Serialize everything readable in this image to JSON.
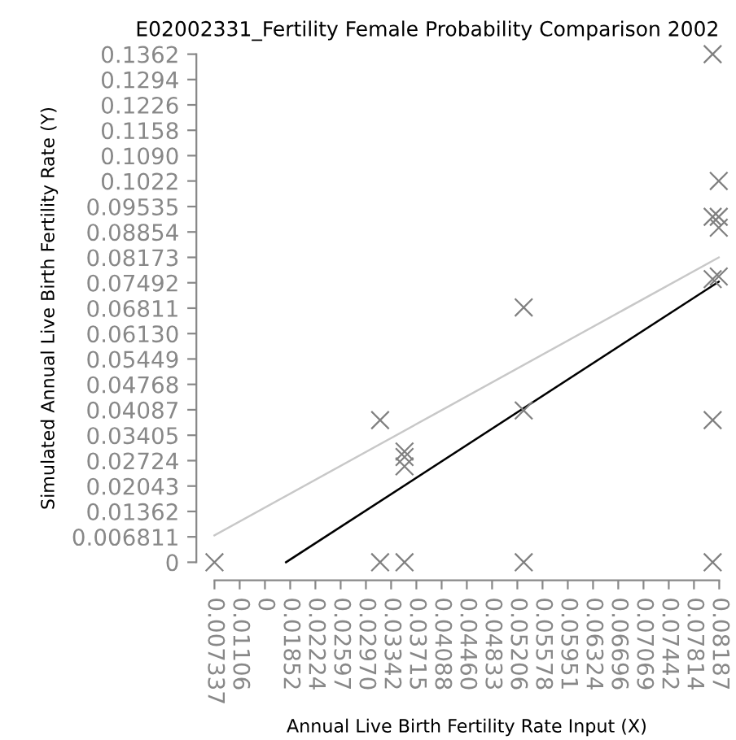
{
  "chart_data": {
    "type": "scatter",
    "title": "E02002331_Fertility Female Probability Comparison 2002",
    "xlabel": "Annual Live Birth Fertility Rate Input (X)",
    "ylabel": "Simulated Annual Live Birth Fertility Rate (Y)",
    "series": [
      {
        "color": "#808080",
        "marker": "cross",
        "x": [
          0.007337,
          0.0318,
          0.0354,
          0.053,
          0.0809,
          0.0318,
          0.0354,
          0.0354,
          0.0354,
          0.053,
          0.053,
          0.0809,
          0.0809,
          0.0818,
          0.0809,
          0.0818,
          0.0818,
          0.0809,
          0.0818
        ],
        "values": [
          0,
          0,
          0,
          0,
          0,
          0.0381,
          0.0297,
          0.0282,
          0.0257,
          0.0683,
          0.0407,
          0.0381,
          0.1362,
          0.1022,
          0.0926,
          0.0926,
          0.0897,
          0.0759,
          0.0766
        ]
      },
      {
        "type": "line",
        "color": "#c8c8c8",
        "x": [
          0.007337,
          0.0818
        ],
        "values": [
          0.0072,
          0.0817
        ]
      },
      {
        "type": "line",
        "color": "#000000",
        "x": [
          0.0179,
          0.0818
        ],
        "values": [
          0,
          0.0752
        ]
      }
    ],
    "xlim": [
      0.007337,
      0.08187
    ],
    "xticks": [
      0.007337,
      0.01106,
      {
        "value": 0.01479,
        "label": "0"
      },
      0.01852,
      0.02224,
      0.02597,
      {
        "value": 0.0297,
        "label": "0.02970"
      },
      0.03342,
      0.03715,
      0.04088,
      {
        "value": 0.0446,
        "label": "0.04460"
      },
      0.04833,
      0.05206,
      0.05578,
      0.05951,
      0.06324,
      0.06696,
      0.07069,
      0.07442,
      0.07814,
      0.08187
    ],
    "ylim": [
      0,
      0.1362
    ],
    "yticks": [
      0,
      0.006811,
      0.01362,
      0.02043,
      0.02724,
      0.03405,
      0.04087,
      0.04768,
      0.05449,
      {
        "value": 0.0613,
        "label": "0.06130"
      },
      0.06811,
      0.07492,
      0.08173,
      0.08854,
      0.09535,
      0.1022,
      {
        "value": 0.109,
        "label": "0.1090"
      },
      0.1158,
      0.1226,
      0.1294,
      0.1362
    ],
    "grid": false,
    "legend": false
  }
}
